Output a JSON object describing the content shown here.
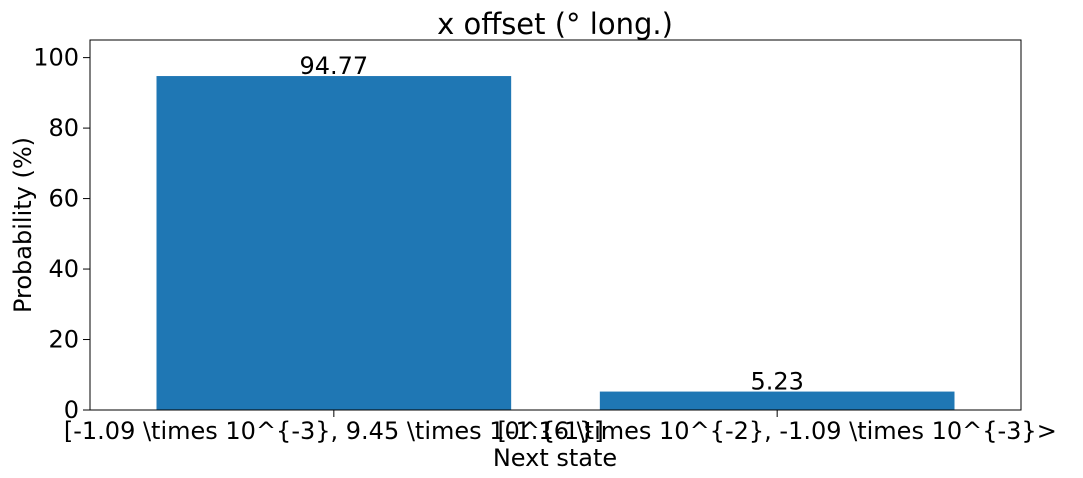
{
  "chart_data": {
    "type": "bar",
    "title": "x offset (° long.)",
    "xlabel": "Next state",
    "ylabel": "Probability (%)",
    "categories": [
      "[-1.09 \\times 10^{-3}, 9.45 \\times 10^{-1}]",
      "[-1.16 \\times 10^{-2}, -1.09 \\times 10^{-3}>"
    ],
    "values": [
      94.77,
      5.23
    ],
    "data_labels": [
      "94.77",
      "5.23"
    ],
    "ylim": [
      0,
      105
    ],
    "yticks": [
      0,
      20,
      40,
      60,
      80,
      100
    ],
    "ytick_labels": [
      "0",
      "20",
      "40",
      "60",
      "80",
      "100"
    ],
    "bar_color": "#1f77b4",
    "grid": false,
    "legend": "none"
  }
}
